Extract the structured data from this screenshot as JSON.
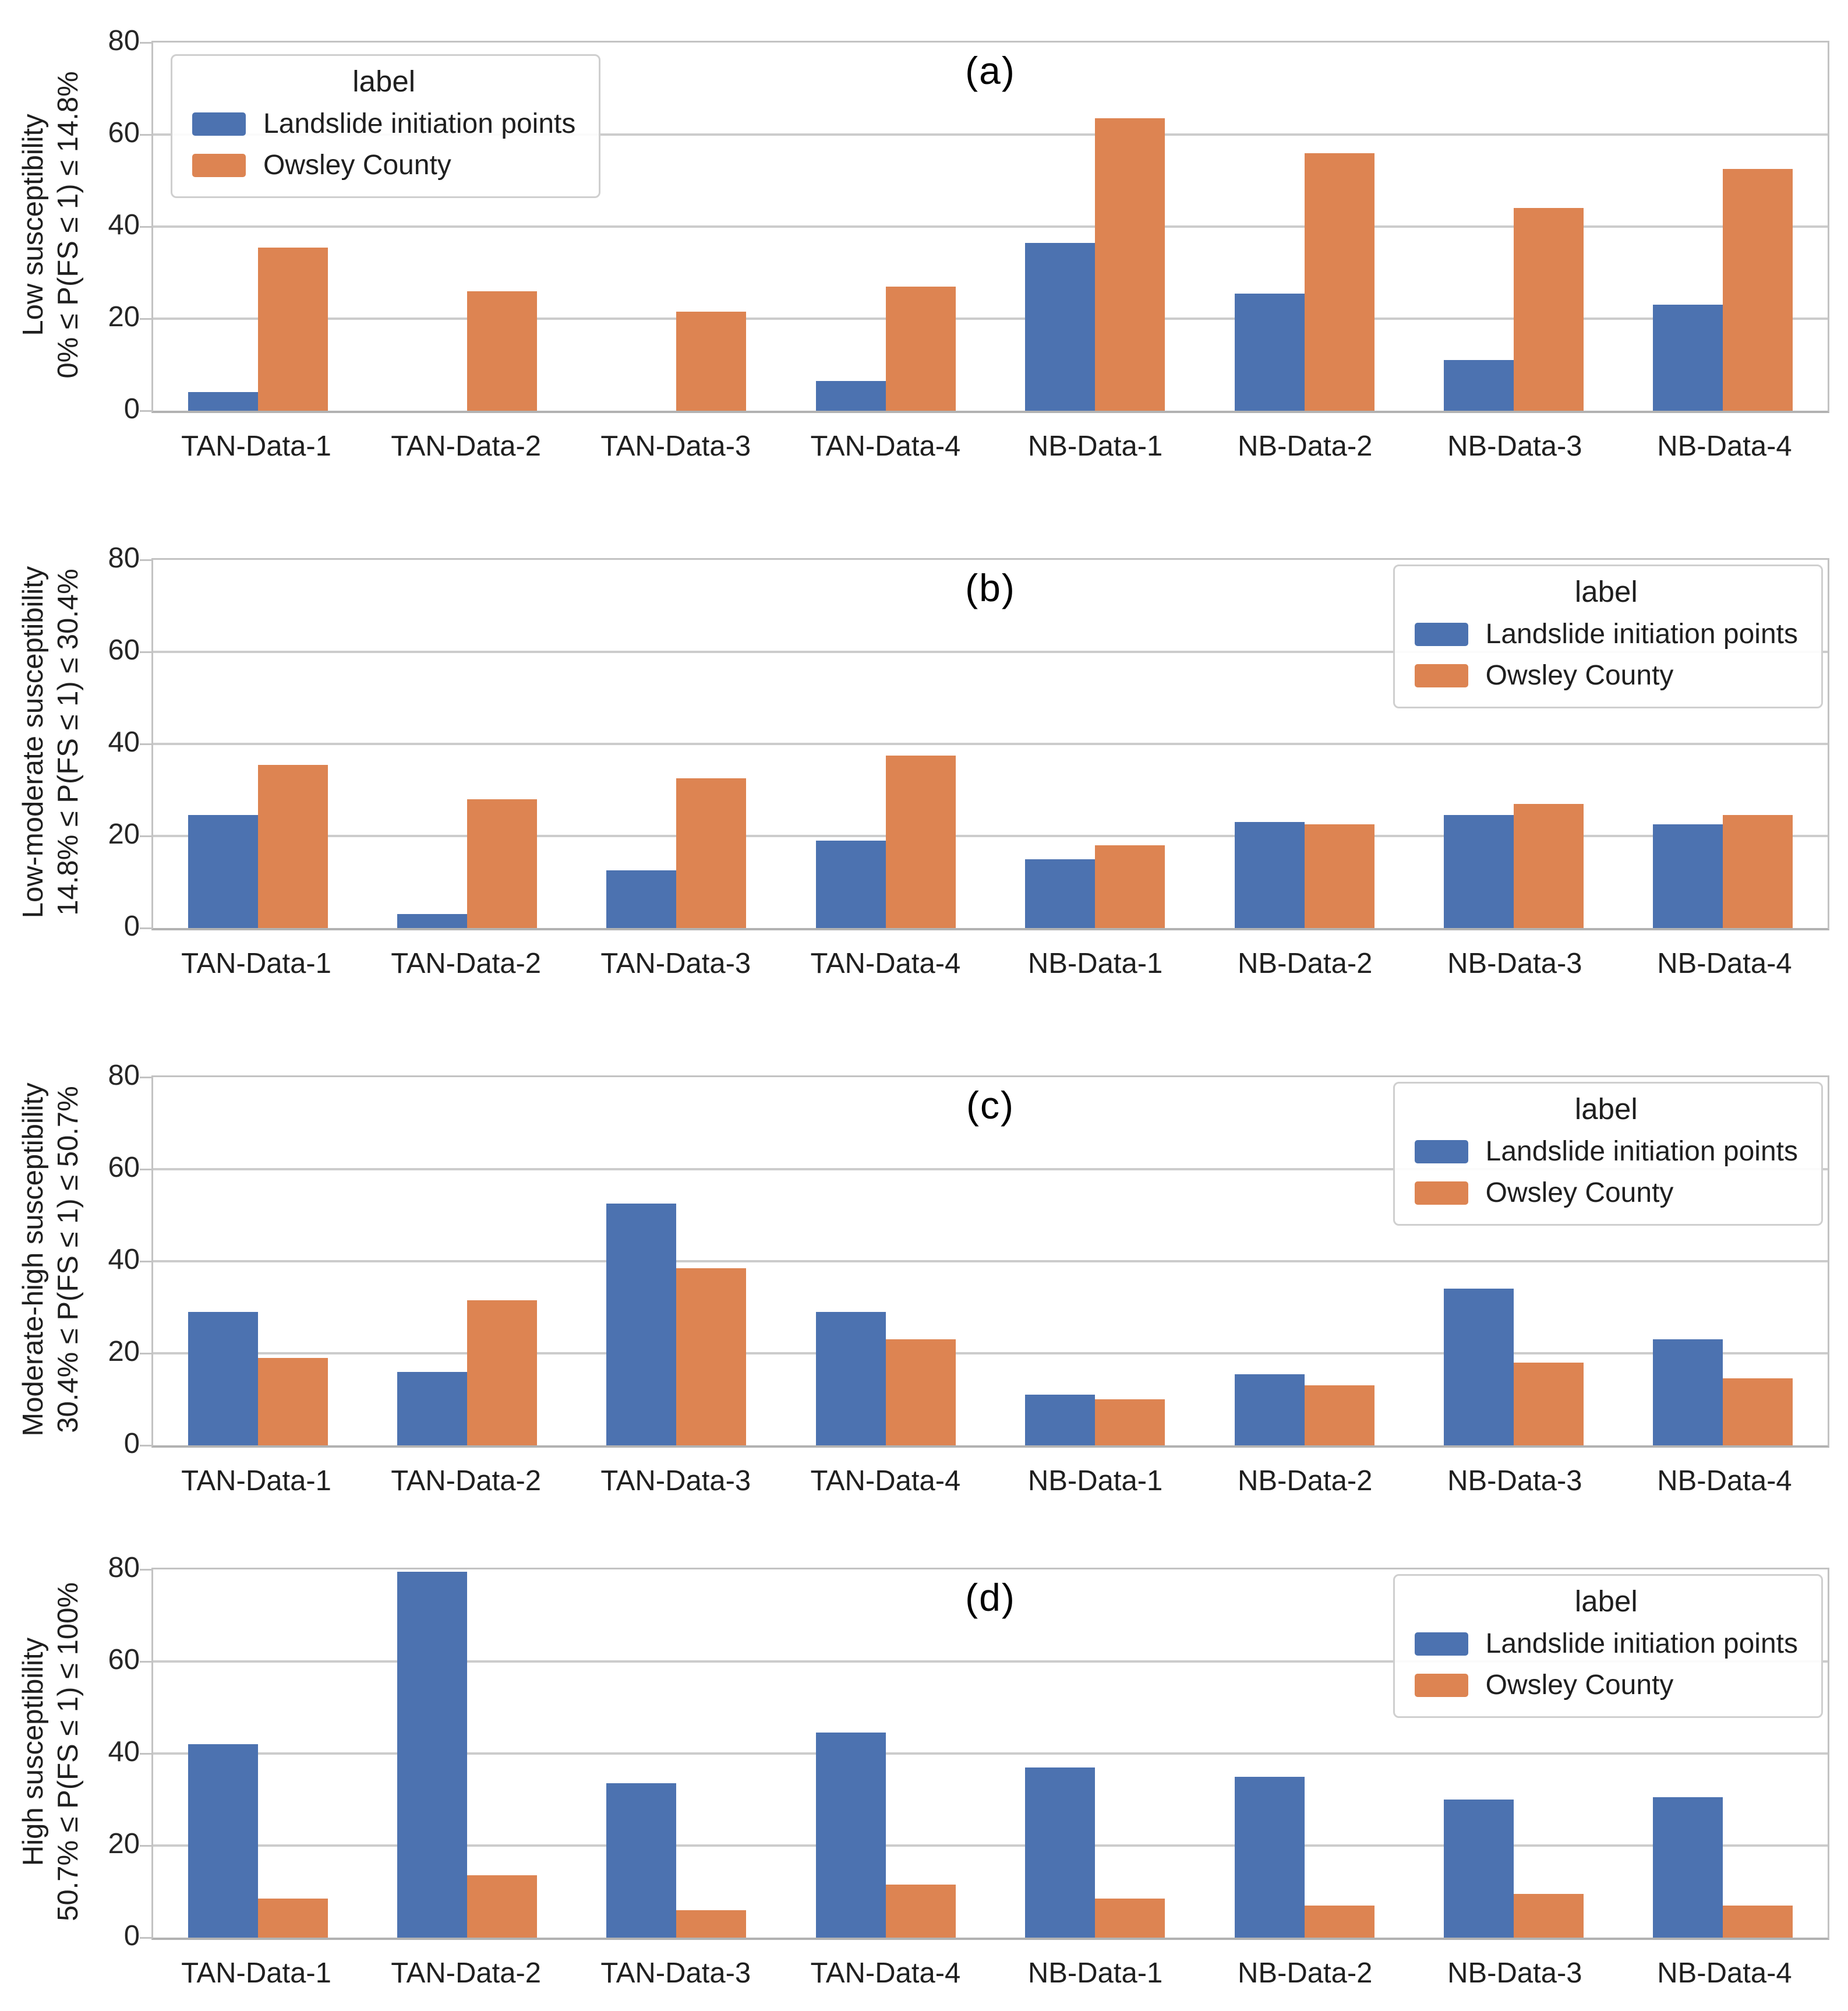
{
  "figure": {
    "background": "#ffffff",
    "text_color": "#1f1f1f",
    "grid_color": "#cccccc",
    "spine_color": "#c3c3c3",
    "series_colors": {
      "landslide": "#4C72B0",
      "owsley": "#DD8452"
    },
    "y_ticks_display": [
      "80",
      "60",
      "40",
      "20",
      "0"
    ]
  },
  "chart_data": [
    {
      "type": "bar",
      "id": "a",
      "title": "(a)",
      "ylabel_line1": "Low susceptibility",
      "ylabel_line2": "0% ≤ P(FS ≤ 1) ≤ 14.8%",
      "categories": [
        "TAN-Data-1",
        "TAN-Data-2",
        "TAN-Data-3",
        "TAN-Data-4",
        "NB-Data-1",
        "NB-Data-2",
        "NB-Data-3",
        "NB-Data-4"
      ],
      "series": [
        {
          "name": "Landslide initiation points",
          "color": "#4C72B0",
          "values": [
            4,
            0,
            0,
            6.5,
            36.5,
            25.5,
            11,
            23
          ]
        },
        {
          "name": "Owsley County",
          "color": "#DD8452",
          "values": [
            35.5,
            26,
            21.5,
            27,
            63.5,
            56,
            44,
            52.5
          ]
        }
      ],
      "ylim": [
        0,
        80
      ],
      "yticks": [
        0,
        20,
        40,
        60,
        80
      ],
      "grid": true,
      "legend": {
        "title": "label",
        "position": "top-left"
      }
    },
    {
      "type": "bar",
      "id": "b",
      "title": "(b)",
      "ylabel_line1": "Low-moderate susceptibility",
      "ylabel_line2": "14.8% ≤ P(FS ≤ 1) ≤ 30.4%",
      "categories": [
        "TAN-Data-1",
        "TAN-Data-2",
        "TAN-Data-3",
        "TAN-Data-4",
        "NB-Data-1",
        "NB-Data-2",
        "NB-Data-3",
        "NB-Data-4"
      ],
      "series": [
        {
          "name": "Landslide initiation points",
          "color": "#4C72B0",
          "values": [
            24.5,
            3,
            12.5,
            19,
            15,
            23,
            24.5,
            22.5
          ]
        },
        {
          "name": "Owsley County",
          "color": "#DD8452",
          "values": [
            35.5,
            28,
            32.5,
            37.5,
            18,
            22.5,
            27,
            24.5
          ]
        }
      ],
      "ylim": [
        0,
        80
      ],
      "yticks": [
        0,
        20,
        40,
        60,
        80
      ],
      "grid": true,
      "legend": {
        "title": "label",
        "position": "top-right"
      }
    },
    {
      "type": "bar",
      "id": "c",
      "title": "(c)",
      "ylabel_line1": "Moderate-high susceptibility",
      "ylabel_line2": "30.4% ≤ P(FS ≤ 1) ≤ 50.7%",
      "categories": [
        "TAN-Data-1",
        "TAN-Data-2",
        "TAN-Data-3",
        "TAN-Data-4",
        "NB-Data-1",
        "NB-Data-2",
        "NB-Data-3",
        "NB-Data-4"
      ],
      "series": [
        {
          "name": "Landslide initiation points",
          "color": "#4C72B0",
          "values": [
            29,
            16,
            52.5,
            29,
            11,
            15.5,
            34,
            23
          ]
        },
        {
          "name": "Owsley County",
          "color": "#DD8452",
          "values": [
            19,
            31.5,
            38.5,
            23,
            10,
            13,
            18,
            14.5
          ]
        }
      ],
      "ylim": [
        0,
        80
      ],
      "yticks": [
        0,
        20,
        40,
        60,
        80
      ],
      "grid": true,
      "legend": {
        "title": "label",
        "position": "top-right"
      }
    },
    {
      "type": "bar",
      "id": "d",
      "title": "(d)",
      "ylabel_line1": "High susceptibility",
      "ylabel_line2": "50.7% ≤ P(FS ≤ 1) ≤ 100%",
      "categories": [
        "TAN-Data-1",
        "TAN-Data-2",
        "TAN-Data-3",
        "TAN-Data-4",
        "NB-Data-1",
        "NB-Data-2",
        "NB-Data-3",
        "NB-Data-4"
      ],
      "series": [
        {
          "name": "Landslide initiation points",
          "color": "#4C72B0",
          "values": [
            42,
            79.5,
            33.5,
            44.5,
            37,
            35,
            30,
            30.5
          ]
        },
        {
          "name": "Owsley County",
          "color": "#DD8452",
          "values": [
            8.5,
            13.5,
            6,
            11.5,
            8.5,
            7,
            9.5,
            7
          ]
        }
      ],
      "ylim": [
        0,
        80
      ],
      "yticks": [
        0,
        20,
        40,
        60,
        80
      ],
      "grid": true,
      "legend": {
        "title": "label",
        "position": "top-right"
      }
    }
  ]
}
